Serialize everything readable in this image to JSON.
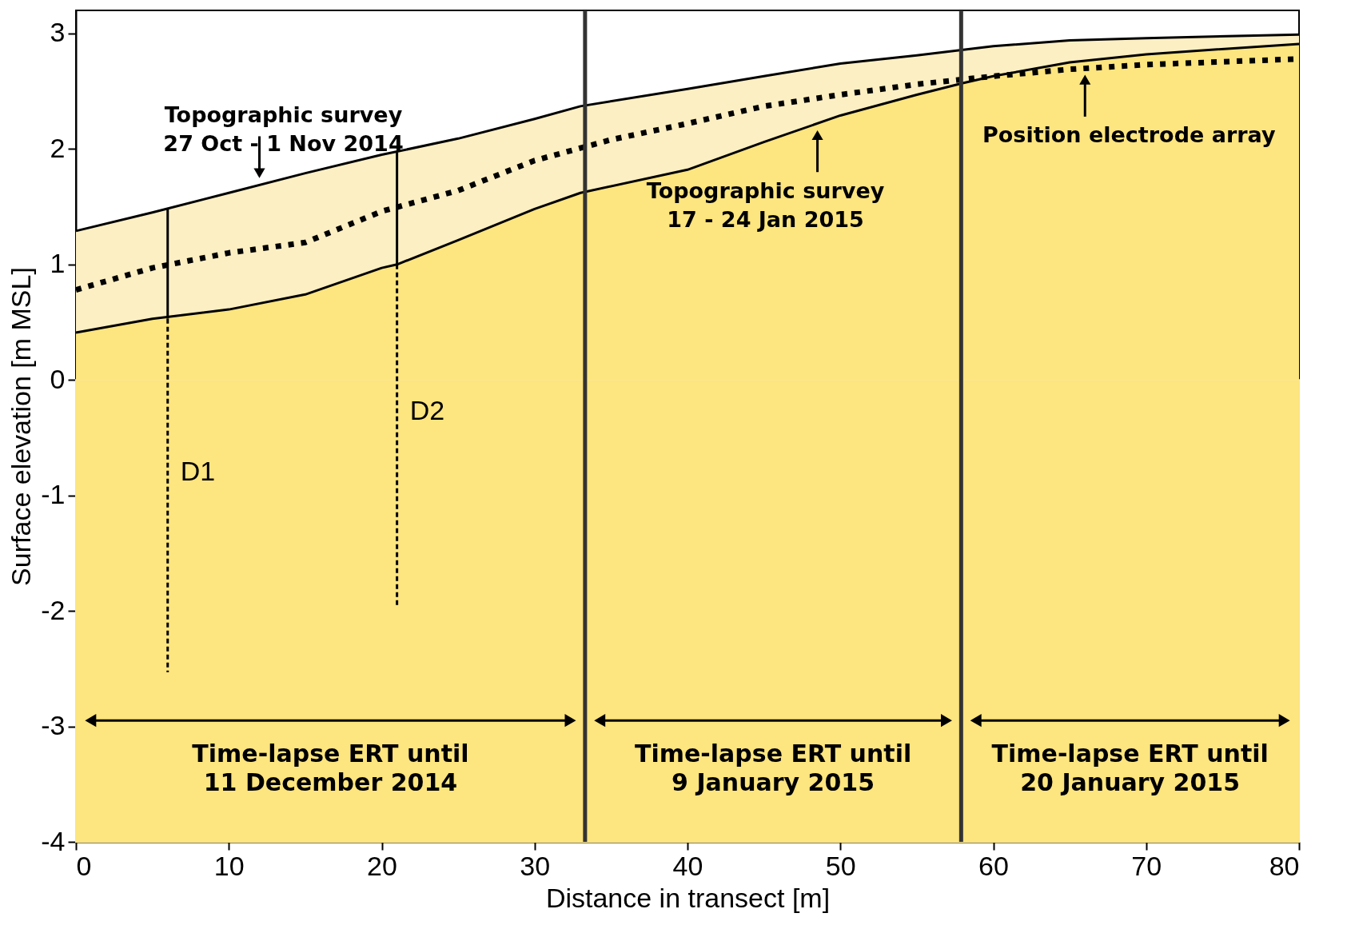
{
  "chart_data": {
    "type": "line",
    "xlabel": "Distance in transect [m]",
    "ylabel": "Surface elevation [m MSL]",
    "xlim": [
      0,
      80
    ],
    "ylim": [
      -4,
      3.2
    ],
    "xticks": [
      0,
      10,
      20,
      30,
      40,
      50,
      60,
      70,
      80
    ],
    "yticks": [
      -4,
      -3,
      -2,
      -1,
      0,
      1,
      2,
      3
    ],
    "grid": false,
    "series": [
      {
        "type": "area",
        "color": "#fcefc3",
        "x": [
          0,
          5,
          10,
          15,
          20,
          25,
          30,
          33,
          40,
          45,
          50,
          55,
          60,
          65,
          70,
          80
        ],
        "values": [
          1.29,
          1.45,
          1.62,
          1.79,
          1.95,
          2.09,
          2.26,
          2.37,
          2.52,
          2.63,
          2.74,
          2.81,
          2.89,
          2.94,
          2.96,
          2.99
        ]
      },
      {
        "type": "area",
        "color": "#fde57f",
        "x": [
          0,
          5,
          10,
          15,
          20,
          21,
          25,
          30,
          33,
          40,
          45,
          50,
          55,
          58,
          60,
          65,
          70,
          80
        ],
        "values": [
          0.41,
          0.53,
          0.61,
          0.74,
          0.97,
          1.0,
          1.21,
          1.48,
          1.62,
          1.82,
          2.06,
          2.29,
          2.47,
          2.57,
          2.63,
          2.75,
          2.82,
          2.91
        ]
      },
      {
        "color": "#000000",
        "line_style": "dotted",
        "x": [
          0,
          5,
          10,
          15,
          20,
          25,
          30,
          35,
          40,
          45,
          50,
          55,
          60,
          65,
          70,
          80
        ],
        "values": [
          0.78,
          0.97,
          1.1,
          1.19,
          1.46,
          1.64,
          1.9,
          2.08,
          2.22,
          2.37,
          2.47,
          2.56,
          2.63,
          2.69,
          2.73,
          2.78
        ]
      },
      {
        "color": "#000000",
        "line_style": "solid",
        "x": [
          6,
          6
        ],
        "values": [
          1.48,
          0.53
        ]
      },
      {
        "name": "D1",
        "color": "#000000",
        "line_style": "dashed",
        "x": [
          6,
          6
        ],
        "values": [
          0.53,
          -2.53
        ]
      },
      {
        "color": "#000000",
        "line_style": "solid",
        "x": [
          21,
          21
        ],
        "values": [
          1.97,
          1.0
        ]
      },
      {
        "name": "D2",
        "color": "#000000",
        "line_style": "dashed",
        "x": [
          21,
          21
        ],
        "values": [
          1.0,
          -1.95
        ]
      }
    ],
    "ref_lines": [
      {
        "axis": "x",
        "value": 33.3,
        "color": "#333333"
      },
      {
        "axis": "x",
        "value": 57.9,
        "color": "#333333"
      }
    ],
    "bands": [
      {
        "axis": "y",
        "from": -4,
        "to": 0,
        "color": "#fde57f"
      }
    ],
    "annotations": [
      {
        "text": "Topographic survey\n27 Oct - 1 Nov 2014",
        "x": 12,
        "y": 1.69
      },
      {
        "text": "Topographic survey\n17 - 24 Jan 2015",
        "x": 48.5,
        "y": 2.22
      },
      {
        "text": "Position electrode array",
        "x": 66,
        "y": 2.7
      },
      "Time-lapse ERT until\n11 December 2014",
      "Time-lapse ERT until\n9 January 2015",
      "Time-lapse ERT until\n20 January 2015"
    ]
  }
}
